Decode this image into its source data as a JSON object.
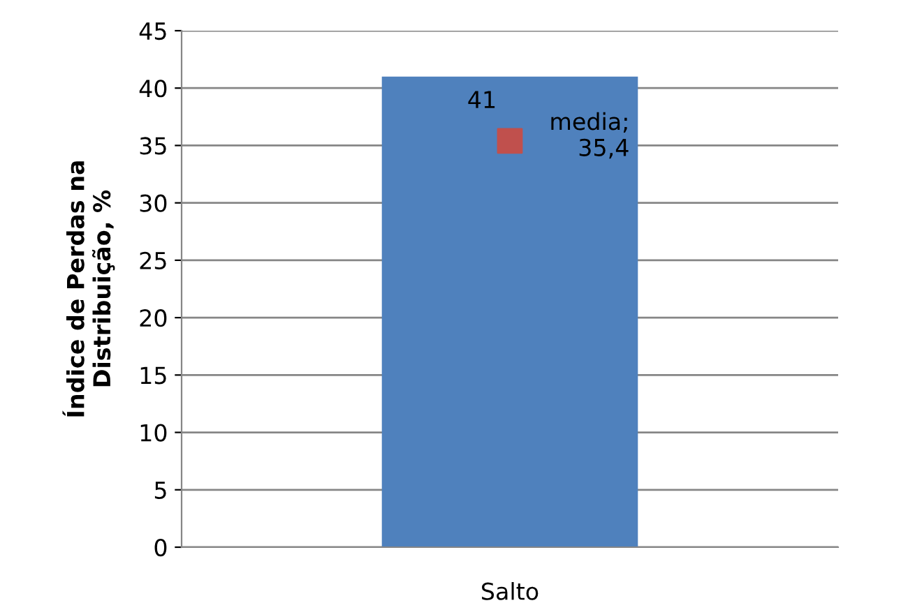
{
  "chart_data": {
    "type": "bar",
    "ylabel": "Índice de Perdas na\nDistribuição, %",
    "categories": [
      "Salto"
    ],
    "series": [
      {
        "color": "#4f81bd",
        "values": [
          41
        ],
        "value_labels": [
          "41"
        ]
      },
      {
        "type": "scatter",
        "color": "#c0504d",
        "values": [
          35.4
        ],
        "value_labels": [
          "media;\n35,4"
        ],
        "marker": "square"
      }
    ],
    "ylim": [
      0,
      45
    ],
    "yticks": [
      0,
      5,
      10,
      15,
      20,
      25,
      30,
      35,
      40,
      45
    ],
    "grid": "y",
    "legend": false
  }
}
